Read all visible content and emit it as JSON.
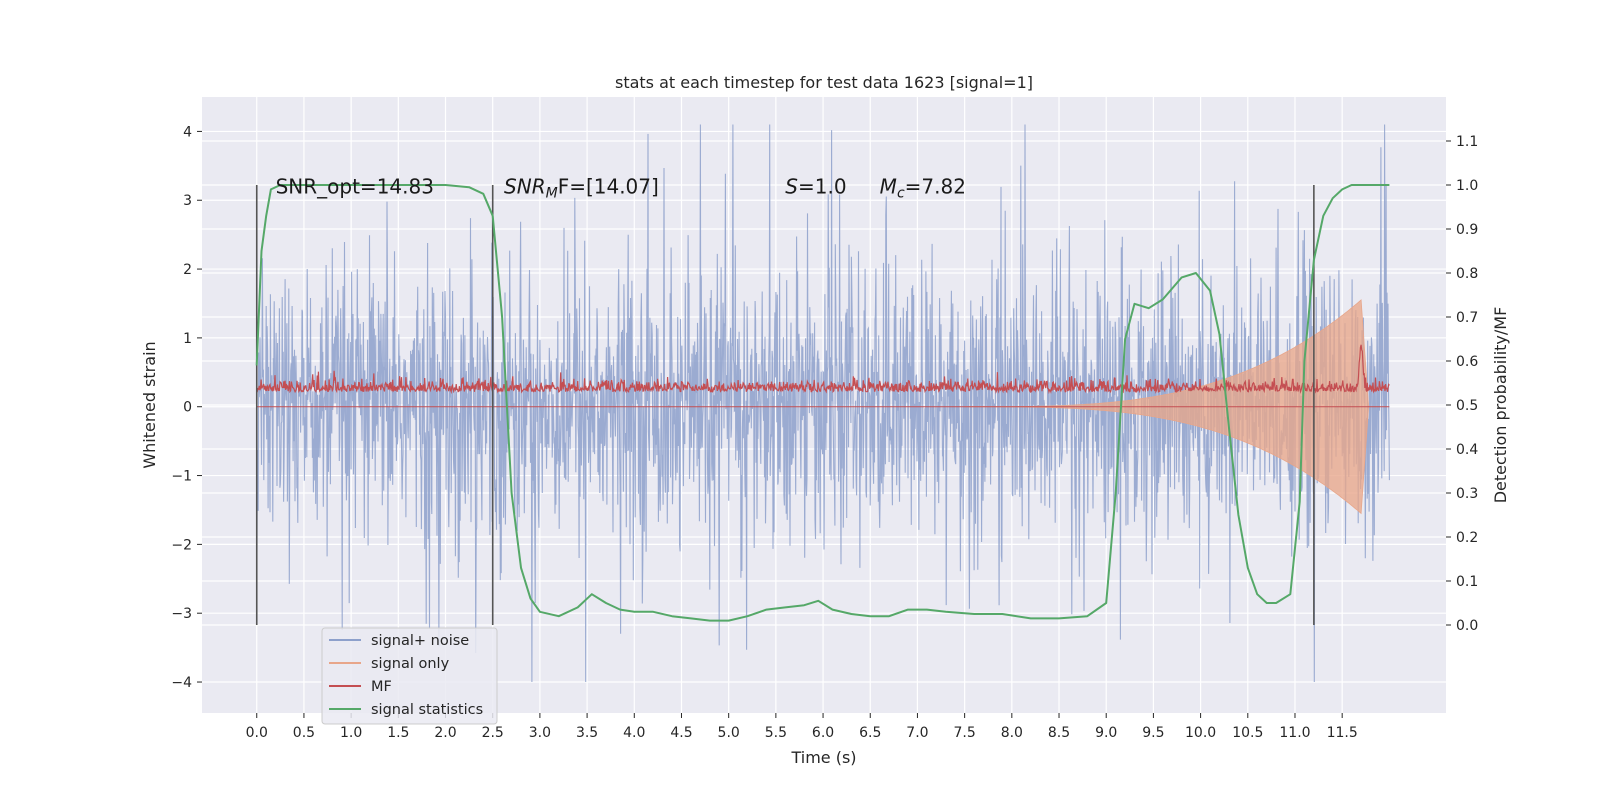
{
  "chart_data": {
    "type": "line",
    "title": "stats at each timestep for test data 1623 [signal=1]",
    "xlabel": "Time (s)",
    "ylabel_left": "Whitened strain",
    "ylabel_right": "Detection probability/MF",
    "x_ticks": [
      "0.0",
      "0.5",
      "1.0",
      "1.5",
      "2.0",
      "2.5",
      "3.0",
      "3.5",
      "4.0",
      "4.5",
      "5.0",
      "5.5",
      "6.0",
      "6.5",
      "7.0",
      "7.5",
      "8.0",
      "8.5",
      "9.0",
      "9.5",
      "10.0",
      "10.5",
      "11.0",
      "11.5"
    ],
    "y_left_ticks": [
      "4",
      "3",
      "2",
      "1",
      "0",
      "−1",
      "−2",
      "−3",
      "−4"
    ],
    "y_right_ticks": [
      "1.1",
      "1.0",
      "0.9",
      "0.8",
      "0.7",
      "0.6",
      "0.5",
      "0.4",
      "0.3",
      "0.2",
      "0.1",
      "0.0"
    ],
    "xlim": [
      -0.58,
      12.6
    ],
    "ylim_left": [
      -4.45,
      4.5
    ],
    "ylim_right": [
      -0.2,
      1.2
    ],
    "grid": true,
    "legend_position": "lower-left",
    "series": [
      {
        "name": "signal+ noise",
        "axis": "left",
        "color": "#8da0cb",
        "envelope_typical": 1.5,
        "peak_max": 4.1,
        "peak_min": -4.0,
        "x_range": [
          0.0,
          12.0
        ]
      },
      {
        "name": "signal only",
        "axis": "left",
        "color": "#e8a68a",
        "chirp_start_x": 7.5,
        "chirp_peak_x": 11.7,
        "chirp_peak_amplitude": 1.55
      },
      {
        "name": "MF",
        "axis": "right",
        "color": "#c44e52",
        "baseline": 0.53,
        "peak_x": 11.7,
        "peak_value": 0.63
      },
      {
        "name": "signal statistics",
        "axis": "right",
        "color": "#55a868",
        "x": [
          0.0,
          0.05,
          0.1,
          0.15,
          0.25,
          0.5,
          1.0,
          1.5,
          2.0,
          2.25,
          2.4,
          2.5,
          2.6,
          2.7,
          2.8,
          2.9,
          3.0,
          3.2,
          3.4,
          3.55,
          3.7,
          3.85,
          4.0,
          4.2,
          4.4,
          4.6,
          4.8,
          5.0,
          5.2,
          5.4,
          5.6,
          5.8,
          5.95,
          6.1,
          6.3,
          6.5,
          6.7,
          6.9,
          7.1,
          7.3,
          7.6,
          7.9,
          8.2,
          8.5,
          8.8,
          9.0,
          9.1,
          9.2,
          9.3,
          9.45,
          9.6,
          9.8,
          9.95,
          10.1,
          10.2,
          10.3,
          10.4,
          10.5,
          10.6,
          10.7,
          10.8,
          10.95,
          11.05,
          11.1,
          11.2,
          11.3,
          11.4,
          11.5,
          11.6,
          11.7,
          11.8,
          12.0
        ],
        "y": [
          0.59,
          0.85,
          0.93,
          0.99,
          1.0,
          1.0,
          1.0,
          1.0,
          1.0,
          0.995,
          0.98,
          0.93,
          0.7,
          0.3,
          0.13,
          0.06,
          0.03,
          0.02,
          0.04,
          0.07,
          0.05,
          0.035,
          0.03,
          0.03,
          0.02,
          0.015,
          0.01,
          0.01,
          0.02,
          0.035,
          0.04,
          0.045,
          0.055,
          0.035,
          0.025,
          0.02,
          0.02,
          0.035,
          0.035,
          0.03,
          0.025,
          0.025,
          0.015,
          0.015,
          0.02,
          0.05,
          0.3,
          0.65,
          0.73,
          0.72,
          0.74,
          0.79,
          0.8,
          0.76,
          0.66,
          0.45,
          0.25,
          0.13,
          0.07,
          0.05,
          0.05,
          0.07,
          0.28,
          0.6,
          0.83,
          0.93,
          0.97,
          0.99,
          1.0,
          1.0,
          1.0,
          1.0
        ]
      }
    ],
    "vertical_lines": [
      0.0,
      2.5,
      11.2
    ],
    "annotations": [
      {
        "id": "snr-opt",
        "text": "SNR_opt=14.83",
        "x": 0.2
      },
      {
        "id": "snr-mf",
        "text_base": "SNR",
        "text_sub": "M",
        "text_tail": "F=[14.07]",
        "x": 2.62
      },
      {
        "id": "s",
        "text_base": "S",
        "text_tail": "=1.0",
        "x": 5.6
      },
      {
        "id": "mc",
        "text_base": "M",
        "text_sub": "c",
        "text_tail": "=7.82",
        "x": 6.6
      }
    ],
    "annotation_y": 3.2
  }
}
